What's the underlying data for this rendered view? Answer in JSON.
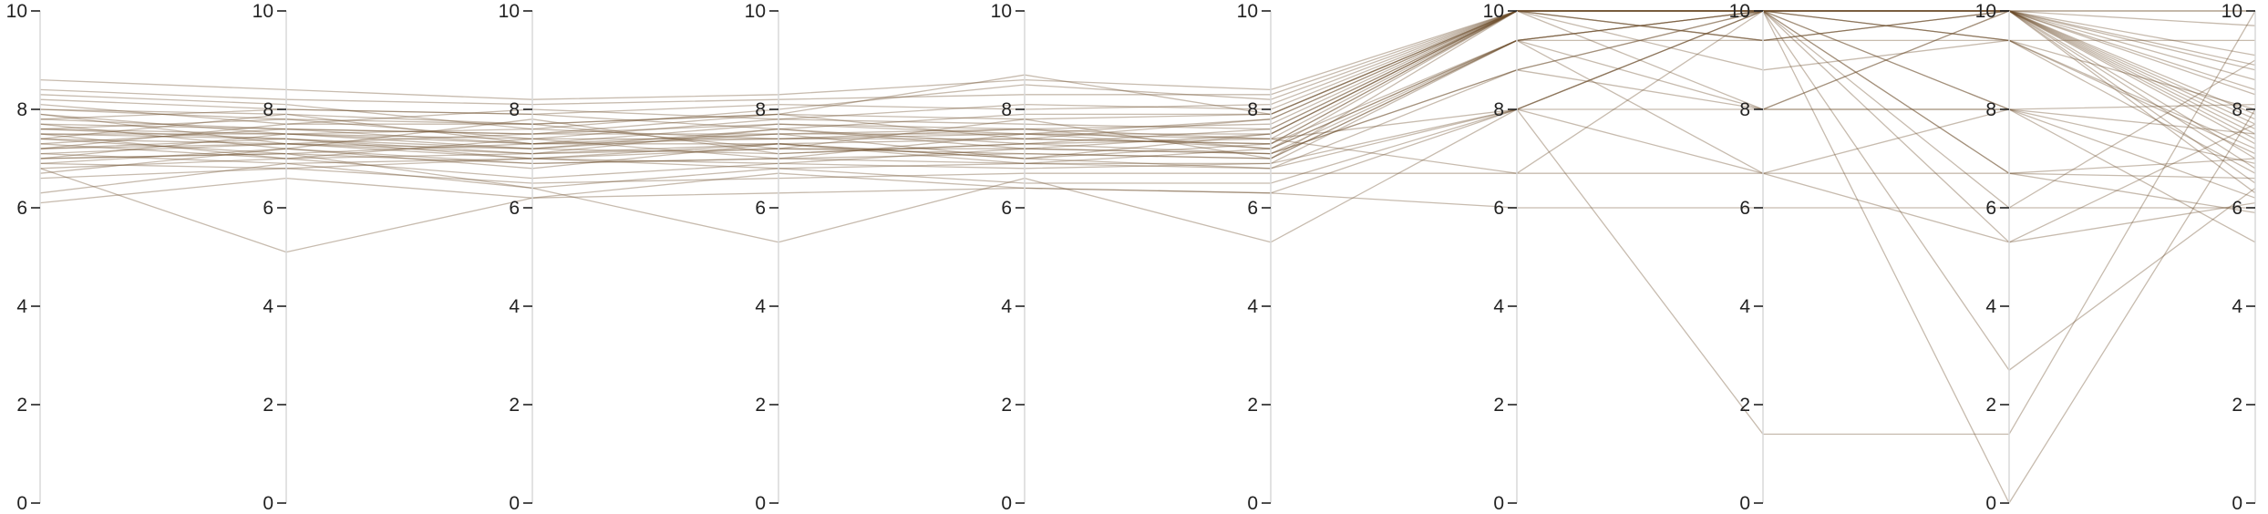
{
  "chart_data": {
    "type": "parallel-coordinates",
    "axes": [
      "",
      "",
      "",
      "",
      "",
      "",
      "",
      "",
      "",
      ""
    ],
    "ylim": [
      0,
      10
    ],
    "ticks": [
      {
        "value": 0,
        "label": "0"
      },
      {
        "value": 2,
        "label": "2"
      },
      {
        "value": 4,
        "label": "4"
      },
      {
        "value": 6,
        "label": "6"
      },
      {
        "value": 8,
        "label": "8"
      },
      {
        "value": 10,
        "label": "10"
      }
    ],
    "colors": {
      "line": "#6b4b2a",
      "axis": "#d9d9d9",
      "text": "#222222"
    },
    "title": "",
    "grid": false,
    "series": [
      {
        "values": [
          7.5,
          7.5,
          7.3,
          7.5,
          7.5,
          7.5,
          10,
          10,
          10,
          10
        ]
      },
      {
        "values": [
          7.2,
          7.4,
          7.0,
          7.3,
          7.4,
          7.3,
          10,
          10,
          10,
          7.6
        ]
      },
      {
        "values": [
          7.8,
          7.6,
          7.5,
          7.7,
          7.6,
          7.7,
          10,
          10,
          10,
          8.6
        ]
      },
      {
        "values": [
          7.0,
          7.1,
          6.9,
          7.0,
          7.1,
          7.0,
          9.4,
          10,
          9.4,
          7.2
        ]
      },
      {
        "values": [
          8.0,
          7.9,
          7.7,
          7.9,
          7.8,
          7.9,
          10,
          9.4,
          10,
          7.9
        ]
      },
      {
        "values": [
          7.4,
          7.3,
          7.2,
          7.6,
          7.3,
          7.4,
          10,
          10,
          10,
          6.8
        ]
      },
      {
        "values": [
          6.8,
          7.0,
          6.6,
          6.9,
          6.8,
          6.9,
          9.4,
          10,
          10,
          7.0
        ]
      },
      {
        "values": [
          8.2,
          8.0,
          7.9,
          8.1,
          8.0,
          8.1,
          10,
          10,
          9.4,
          8.0
        ]
      },
      {
        "values": [
          7.6,
          7.8,
          7.4,
          7.8,
          7.7,
          7.6,
          10,
          10,
          10,
          8.3
        ]
      },
      {
        "values": [
          7.1,
          7.3,
          7.1,
          7.2,
          7.2,
          7.1,
          8.8,
          10,
          10,
          7.3
        ]
      },
      {
        "values": [
          7.9,
          7.5,
          7.6,
          7.4,
          7.5,
          7.8,
          10,
          9.4,
          10,
          7.7
        ]
      },
      {
        "values": [
          6.9,
          6.8,
          7.0,
          6.8,
          6.9,
          6.9,
          8.0,
          8.0,
          8.0,
          7.5
        ]
      },
      {
        "values": [
          8.4,
          8.2,
          8.1,
          8.2,
          8.3,
          8.3,
          10,
          10,
          10,
          8.8
        ]
      },
      {
        "values": [
          6.6,
          6.8,
          6.5,
          6.6,
          6.7,
          6.7,
          6.7,
          10,
          6.7,
          6.6
        ]
      },
      {
        "values": [
          7.3,
          7.6,
          7.3,
          7.4,
          7.6,
          7.2,
          9.4,
          10,
          10,
          9.1
        ]
      },
      {
        "values": [
          7.7,
          7.2,
          7.8,
          7.1,
          7.3,
          7.6,
          10,
          8.8,
          9.4,
          7.1
        ]
      },
      {
        "values": [
          8.1,
          7.7,
          8.0,
          7.8,
          8.1,
          8.0,
          10,
          10,
          10,
          6.5
        ]
      },
      {
        "values": [
          7.0,
          7.5,
          7.2,
          7.5,
          7.0,
          7.3,
          10,
          10,
          8.0,
          8.1
        ]
      },
      {
        "values": [
          7.5,
          7.0,
          7.4,
          7.0,
          7.5,
          7.4,
          8.0,
          10,
          10,
          6.3
        ]
      },
      {
        "values": [
          8.3,
          8.1,
          7.6,
          8.0,
          8.5,
          8.2,
          10,
          9.4,
          9.4,
          9.4
        ]
      },
      {
        "values": [
          6.7,
          7.2,
          6.8,
          7.3,
          6.9,
          6.8,
          8.8,
          8.0,
          10,
          7.4
        ]
      },
      {
        "values": [
          7.6,
          7.4,
          7.1,
          7.6,
          7.2,
          7.5,
          10,
          10,
          6.7,
          5.9
        ]
      },
      {
        "values": [
          7.2,
          7.7,
          7.7,
          7.2,
          7.8,
          7.0,
          9.4,
          9.4,
          10,
          8.4
        ]
      },
      {
        "values": [
          7.9,
          7.3,
          7.5,
          7.9,
          7.4,
          7.8,
          10,
          10,
          10,
          7.8
        ]
      },
      {
        "values": [
          8.6,
          8.4,
          8.2,
          8.3,
          8.6,
          8.4,
          10,
          10,
          10,
          9.7
        ]
      },
      {
        "values": [
          6.3,
          6.9,
          6.4,
          6.8,
          6.5,
          6.5,
          8.0,
          10,
          8.0,
          6.9
        ]
      },
      {
        "values": [
          7.4,
          7.9,
          7.3,
          7.7,
          7.5,
          7.2,
          10,
          8.0,
          10,
          7.5
        ]
      },
      {
        "values": [
          7.1,
          6.9,
          7.0,
          6.9,
          7.2,
          7.1,
          9.4,
          10,
          9.4,
          6.7
        ]
      },
      {
        "values": [
          7.8,
          8.0,
          7.9,
          7.6,
          7.9,
          7.9,
          10,
          10,
          10,
          8.9
        ]
      },
      {
        "values": [
          6.1,
          6.6,
          6.2,
          6.7,
          6.4,
          6.3,
          8.0,
          6.7,
          8.0,
          6.2
        ]
      },
      {
        "values": [
          6.8,
          5.1,
          6.2,
          6.3,
          6.4,
          6.3,
          6.0,
          6.0,
          6.0,
          6.0
        ]
      },
      {
        "values": [
          7.0,
          7.1,
          6.4,
          5.3,
          6.6,
          5.3,
          8.0,
          1.4,
          1.4,
          10
        ]
      },
      {
        "values": [
          7.3,
          7.0,
          7.1,
          7.3,
          7.0,
          6.8,
          8.0,
          10,
          2.7,
          6.4
        ]
      },
      {
        "values": [
          7.5,
          7.4,
          7.2,
          7.1,
          7.3,
          7.1,
          8.8,
          10,
          0.0,
          8.0
        ]
      },
      {
        "values": [
          7.6,
          7.5,
          7.4,
          7.4,
          7.4,
          7.3,
          9.4,
          6.7,
          5.3,
          7.7
        ]
      },
      {
        "values": [
          7.2,
          7.3,
          7.0,
          7.2,
          7.1,
          7.0,
          10,
          10,
          5.3,
          6.1
        ]
      },
      {
        "values": [
          7.7,
          7.6,
          7.5,
          7.5,
          7.6,
          7.4,
          6.7,
          6.7,
          6.7,
          7.0
        ]
      },
      {
        "values": [
          8.0,
          7.8,
          7.7,
          7.9,
          8.7,
          7.9,
          10,
          10,
          6.0,
          9.0
        ]
      },
      {
        "values": [
          6.9,
          7.2,
          6.9,
          7.0,
          6.9,
          7.2,
          9.4,
          8.0,
          8.0,
          5.3
        ]
      },
      {
        "values": [
          7.4,
          7.1,
          7.3,
          7.3,
          7.0,
          7.5,
          10,
          10,
          10,
          10
        ]
      }
    ]
  }
}
